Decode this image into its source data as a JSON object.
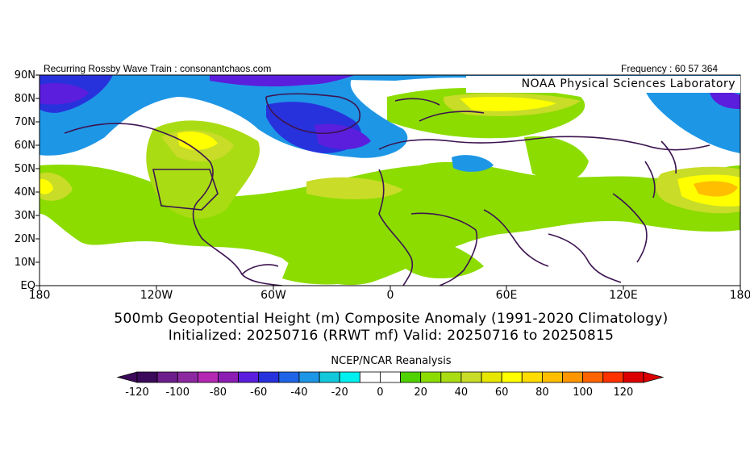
{
  "header": {
    "left": "Recurring Rossby Wave Train : consonantchaos.com",
    "right": "Frequency : 60 57 364",
    "lab": "NOAA Physical Sciences Laboratory"
  },
  "lat_labels": [
    "90N",
    "80N",
    "70N",
    "60N",
    "50N",
    "40N",
    "30N",
    "20N",
    "10N",
    "EQ"
  ],
  "lon_labels": [
    "180",
    "120W",
    "60W",
    "0",
    "60E",
    "120E",
    "180"
  ],
  "title_line1": "500mb Geopotential Height (m) Composite Anomaly (1991-2020 Climatology)",
  "title_line2": "Initialized: 20250716 (RRWT mf) Valid: 20250716 to 20250815",
  "colorbar": {
    "title": "NCEP/NCAR Reanalysis",
    "labels": [
      "-120",
      "-100",
      "-80",
      "-60",
      "-40",
      "-20",
      "0",
      "20",
      "40",
      "60",
      "80",
      "100",
      "120"
    ],
    "colors": [
      "#3c0a5a",
      "#6e1e8c",
      "#8c28a0",
      "#b428b4",
      "#8c1eb4",
      "#5a1edc",
      "#2832dc",
      "#1e64e6",
      "#1e96e6",
      "#14c8dc",
      "#00f0f0",
      "#ffffff",
      "#ffffff",
      "#50d200",
      "#8cdc00",
      "#aadc14",
      "#c8dc28",
      "#e6e600",
      "#ffff00",
      "#ffdc00",
      "#ffbe00",
      "#ff9600",
      "#ff6400",
      "#ff3200",
      "#dc0000"
    ]
  }
}
